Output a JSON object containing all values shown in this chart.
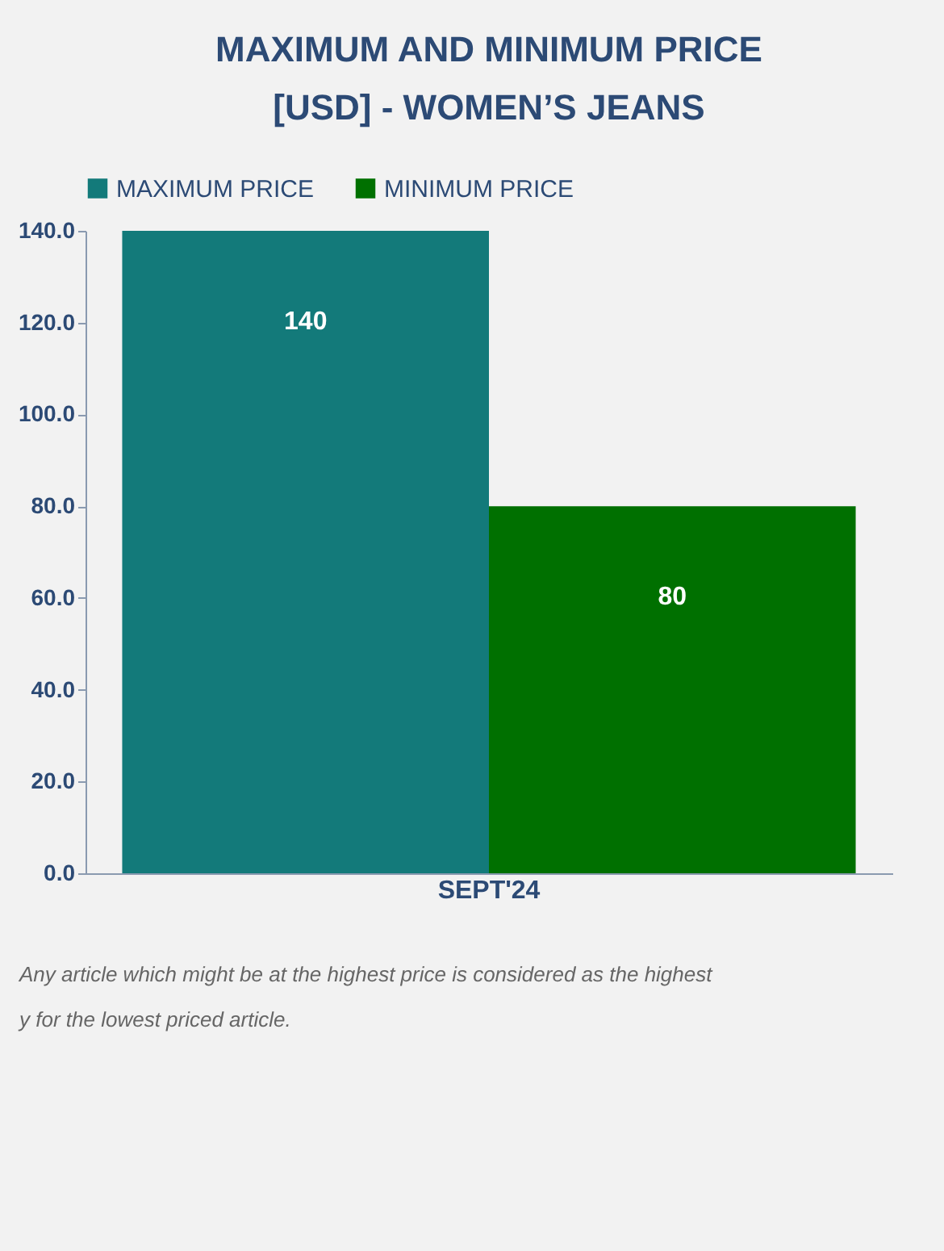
{
  "chart_data": {
    "type": "bar",
    "title": "MAXIMUM AND MINIMUM PRICE [USD] - WOMEN’S JEANS",
    "categories": [
      "SEPT'24"
    ],
    "series": [
      {
        "name": "MAXIMUM PRICE",
        "color": "#137a7a",
        "values": [
          140
        ]
      },
      {
        "name": "MINIMUM PRICE",
        "color": "#007000",
        "values": [
          80
        ]
      }
    ],
    "ylim": [
      0,
      140
    ],
    "yticks": [
      {
        "value": 0,
        "label": "0.0"
      },
      {
        "value": 20,
        "label": "20.0"
      },
      {
        "value": 40,
        "label": "40.0"
      },
      {
        "value": 60,
        "label": "60.0"
      },
      {
        "value": 80,
        "label": "80.0"
      },
      {
        "value": 100,
        "label": "100.0"
      },
      {
        "value": 120,
        "label": "120.0"
      },
      {
        "value": 140,
        "label": "140.0"
      }
    ],
    "grid": false,
    "legend": "top",
    "data_labels": true,
    "annotations": [
      "Any article which might be at the highest price is considered as the highest",
      "y for the lowest priced article."
    ]
  }
}
